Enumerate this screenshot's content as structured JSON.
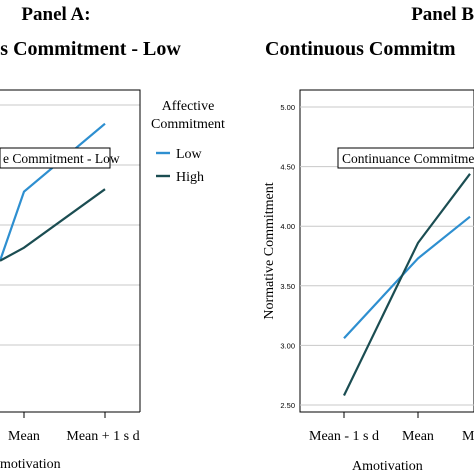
{
  "panels": {
    "a": {
      "title": "Panel A:",
      "subtitle": "us Commitment - Low"
    },
    "b": {
      "title": "Panel B",
      "subtitle": "Continuous Commitm"
    }
  },
  "legend": {
    "title_line1": "Affective",
    "title_line2": "Commitment",
    "items": [
      "Low",
      "High"
    ]
  },
  "colors": {
    "low": "#2e8fd0",
    "high": "#1b4d52",
    "grid": "#c8c8c8",
    "frame": "#000000"
  },
  "chart_data": [
    {
      "type": "line",
      "panel": "A",
      "title": "Panel A:",
      "subtitle": "us Commitment - Low",
      "annotation": "e Commitment - Low",
      "categories": [
        "Mean",
        "Mean + 1 s d"
      ],
      "xlabel": "motivation",
      "ylabel": "",
      "series": [
        {
          "name": "Low",
          "values": [
            4.29,
            4.86
          ]
        },
        {
          "name": "High",
          "values": [
            3.82,
            4.31
          ]
        }
      ],
      "grid": true,
      "legend_position": "right"
    },
    {
      "type": "line",
      "panel": "B",
      "title": "Panel B",
      "subtitle": "Continuous Commitm",
      "annotation": "Continuance Commitment -",
      "categories": [
        "Mean - 1 s d",
        "Mean",
        "M"
      ],
      "xlabel": "Amotivation",
      "ylabel": "Normative Commitment",
      "yticks": [
        "2.50",
        "3.00",
        "3.50",
        "4.00",
        "4.50",
        "5.00"
      ],
      "ylim": [
        2.5,
        5.0
      ],
      "series": [
        {
          "name": "Low",
          "values": [
            3.06,
            3.73,
            4.08
          ]
        },
        {
          "name": "High",
          "values": [
            2.58,
            3.86,
            4.44
          ]
        }
      ],
      "grid": true
    }
  ]
}
